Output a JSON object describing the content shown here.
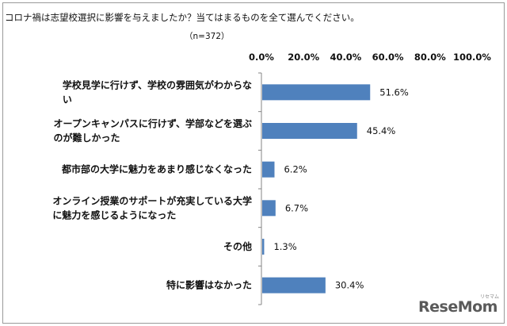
{
  "title": "コロナ禍は志望校選択に影響を与えましたか？当てはまるものを全て選んでください。",
  "sample_size": "（n=372）",
  "chart_data": {
    "type": "bar",
    "orientation": "horizontal",
    "categories": [
      [
        "学校見学に行けず、学校の雰囲気がわからな",
        "い"
      ],
      [
        "オープンキャンパスに行けず、学部などを選ぶ",
        "のが難しかった"
      ],
      [
        "都市部の大学に魅力をあまり感じなくなった"
      ],
      [
        "オンライン授業のサポートが充実している大学",
        "に魅力を感じるようになった"
      ],
      [
        "その他"
      ],
      [
        "特に影響はなかった"
      ]
    ],
    "values": [
      51.6,
      45.4,
      6.2,
      6.7,
      1.3,
      30.4
    ],
    "value_labels": [
      "51.6%",
      "45.4%",
      "6.2%",
      "6.7%",
      "1.3%",
      "30.4%"
    ],
    "x_ticks": [
      "0.0%",
      "20.0%",
      "40.0%",
      "60.0%",
      "80.0%",
      "100.0%"
    ],
    "xlim": [
      0,
      100
    ],
    "axis_position": "top",
    "grid": false,
    "legend": "none",
    "bar_color": "#4f81bd"
  },
  "watermark": {
    "logo_text": "ReseMom",
    "logo_kana": "リセマム"
  }
}
